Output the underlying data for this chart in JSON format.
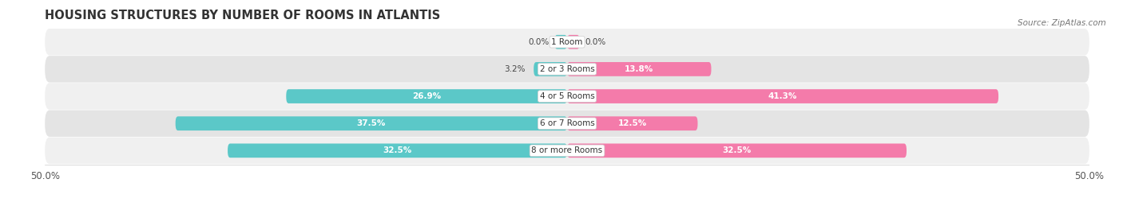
{
  "title": "HOUSING STRUCTURES BY NUMBER OF ROOMS IN ATLANTIS",
  "source": "Source: ZipAtlas.com",
  "categories": [
    "1 Room",
    "2 or 3 Rooms",
    "4 or 5 Rooms",
    "6 or 7 Rooms",
    "8 or more Rooms"
  ],
  "owner_values": [
    0.0,
    3.2,
    26.9,
    37.5,
    32.5
  ],
  "renter_values": [
    0.0,
    13.8,
    41.3,
    12.5,
    32.5
  ],
  "owner_color": "#5BC8C8",
  "renter_color": "#F47BAA",
  "owner_color_light": "#A8DEDE",
  "renter_color_light": "#F9AECB",
  "row_bg_even": "#F0F0F0",
  "row_bg_odd": "#E4E4E4",
  "max_val": 50.0,
  "bar_height": 0.52,
  "title_fontsize": 10.5,
  "source_fontsize": 7.5,
  "value_fontsize": 7.5,
  "cat_fontsize": 7.5,
  "inside_label_threshold": 8.0
}
